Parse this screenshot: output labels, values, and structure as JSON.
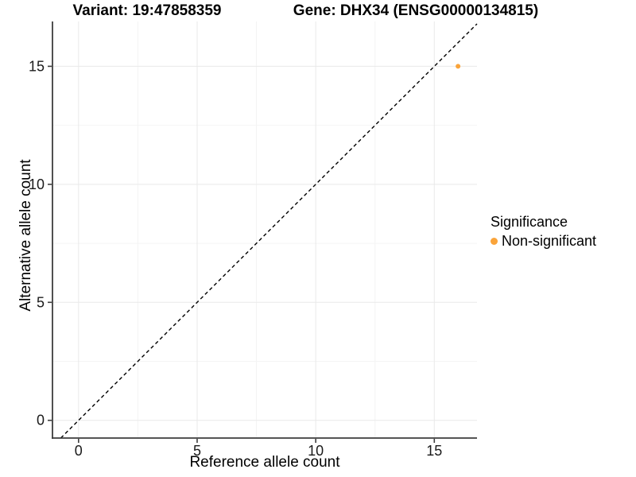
{
  "chart_data": {
    "type": "scatter",
    "title_left": "Variant: 19:47858359",
    "title_right": "Gene: DHX34 (ENSG00000134815)",
    "xlabel": "Reference allele count",
    "ylabel": "Alternative allele count",
    "xlim": [
      -1.1,
      16.8
    ],
    "ylim": [
      -0.75,
      16.9
    ],
    "x_ticks": [
      0,
      5,
      10,
      15
    ],
    "y_ticks": [
      0,
      5,
      10,
      15
    ],
    "x_minor_ticks": [
      2.5,
      7.5,
      12.5
    ],
    "y_minor_ticks": [
      2.5,
      7.5,
      12.5
    ],
    "grid": "major and minor gridlines, no top/right panel border",
    "points": [
      {
        "x": 16,
        "y": 15,
        "series": "Non-significant"
      }
    ],
    "reference_line": {
      "type": "identity",
      "slope": 1,
      "intercept": 0,
      "style": "dashed",
      "color": "#000000"
    },
    "legend": {
      "title": "Significance",
      "position": "right",
      "entries": [
        {
          "label": "Non-significant",
          "color": "#FAA43A"
        }
      ]
    }
  },
  "colors": {
    "background": "#FFFFFF",
    "grid_major": "#E9E9E9",
    "grid_minor": "#F4F4F4",
    "axis_line": "#3D3D3D",
    "tick_text": "#1A1A1A",
    "point": "#FAA43A"
  }
}
